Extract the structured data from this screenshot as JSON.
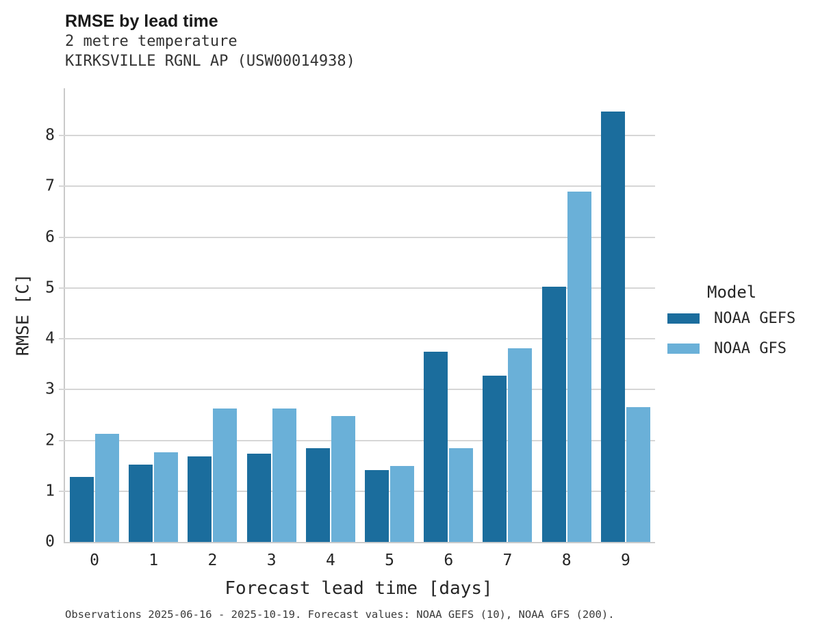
{
  "footnote": "Observations 2025-06-16 - 2025-10-19. Forecast values: NOAA GEFS (10), NOAA GFS (200).",
  "chart_data": {
    "type": "bar",
    "title": "RMSE by lead time",
    "subtitle": [
      "2 metre temperature",
      "KIRKSVILLE RGNL AP (USW00014938)"
    ],
    "xlabel": "Forecast lead time [days]",
    "ylabel": "RMSE [C]",
    "categories": [
      "0",
      "1",
      "2",
      "3",
      "4",
      "5",
      "6",
      "7",
      "8",
      "9"
    ],
    "series": [
      {
        "name": "NOAA GEFS",
        "color": "#1b6d9d",
        "values": [
          1.28,
          1.52,
          1.69,
          1.74,
          1.84,
          1.42,
          3.75,
          3.27,
          5.03,
          8.47
        ]
      },
      {
        "name": "NOAA GFS",
        "color": "#6ab0d8",
        "values": [
          2.13,
          1.76,
          2.62,
          2.63,
          2.48,
          1.49,
          1.84,
          3.81,
          6.9,
          2.66
        ]
      }
    ],
    "ylim": [
      0,
      8.93
    ],
    "yticks": [
      0,
      1,
      2,
      3,
      4,
      5,
      6,
      7,
      8
    ],
    "grid": true,
    "grid_color": "#d6d6d6",
    "legend_title": "Model",
    "legend_position": "right"
  }
}
